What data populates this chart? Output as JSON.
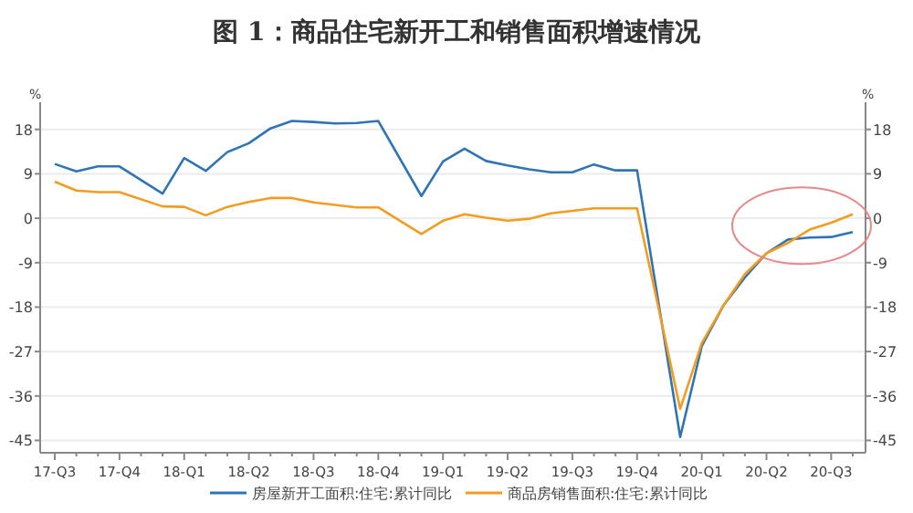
{
  "chart_data": {
    "type": "line",
    "title": "图 1：商品住宅新开工和销售面积增速情况",
    "categories": [
      "17-Q3",
      null,
      null,
      "17-Q4",
      null,
      null,
      "18-Q1",
      null,
      null,
      "18-Q2",
      null,
      null,
      "18-Q3",
      null,
      null,
      "18-Q4",
      null,
      null,
      "19-Q1",
      null,
      null,
      "19-Q2",
      null,
      null,
      "19-Q3",
      null,
      null,
      "19-Q4",
      null,
      null,
      "20-Q1",
      null,
      null,
      "20-Q2",
      null,
      null,
      "20-Q3",
      null
    ],
    "series": [
      {
        "name": "房屋新开工面积:住宅:累计同比",
        "color": "#2f74b5",
        "values": [
          11,
          9.5,
          10.5,
          10.5,
          null,
          5,
          12.2,
          9.6,
          13.4,
          15.2,
          18.2,
          19.7,
          19.5,
          19.2,
          19.3,
          19.7,
          null,
          4.5,
          11.5,
          14.1,
          11.6,
          10.7,
          9.9,
          9.3,
          9.3,
          10.9,
          9.7,
          9.7,
          null,
          -44.3,
          -25.9,
          -17.7,
          -12,
          -7.1,
          -4.3,
          -3.9,
          -3.8,
          -2.8
        ]
      },
      {
        "name": "商品房销售面积:住宅:累计同比",
        "color": "#f39c1f",
        "values": [
          7.4,
          5.6,
          5.3,
          5.3,
          null,
          2.4,
          2.3,
          0.6,
          2.3,
          3.3,
          4.1,
          4.1,
          3.2,
          2.7,
          2.2,
          2.2,
          null,
          -3.2,
          -0.5,
          0.8,
          0.1,
          -0.5,
          -0.1,
          1.0,
          1.5,
          2.0,
          2.0,
          2.0,
          null,
          -38.6,
          -25.3,
          -17.7,
          -11.3,
          -7.1,
          -5.0,
          -2.3,
          -0.9,
          0.8
        ]
      }
    ],
    "ylabel": "%",
    "y2label": "%",
    "ylim": [
      -47.5,
      23.5
    ],
    "yticks": [
      18,
      9,
      0,
      -9,
      -18,
      -27,
      -36,
      -45
    ],
    "y2lim": [
      -47.5,
      23.5
    ],
    "y2ticks": [
      18,
      9,
      0,
      -9,
      -18,
      -27,
      -36,
      -45
    ],
    "grid": "y",
    "legend": "bottom",
    "line_style": "solid",
    "marker": "none"
  }
}
